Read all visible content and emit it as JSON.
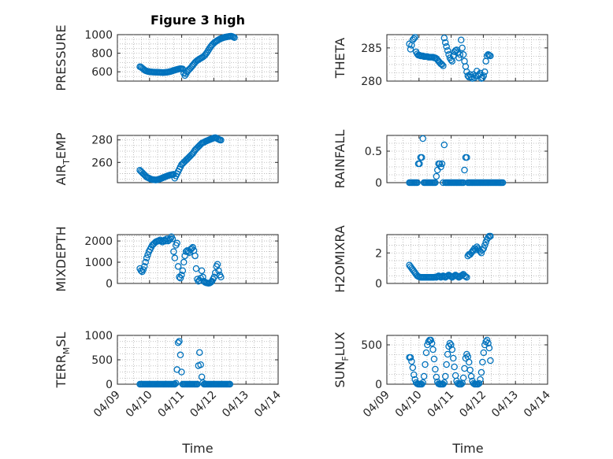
{
  "figure": {
    "title": "Figure 3 high",
    "xlabel": "Time",
    "x_tick_labels": [
      "04/09",
      "04/10",
      "04/11",
      "04/12",
      "04/13",
      "04/14"
    ]
  },
  "colors": {
    "marker": "#0072bd",
    "axis": "#262626",
    "grid": "#b0b0b0"
  },
  "chart_data": [
    {
      "type": "scatter",
      "id": "pressure",
      "ylabel": "PRESSURE",
      "ylabel_sub": "",
      "ylim": [
        500,
        1000
      ],
      "yticks": [
        600,
        800,
        1000
      ],
      "x_start": 0.7,
      "x_step": 0.035,
      "values": [
        655,
        650,
        640,
        630,
        620,
        612,
        608,
        604,
        602,
        600,
        598,
        597,
        596,
        596,
        595,
        595,
        594,
        594,
        593,
        593,
        592,
        592,
        593,
        594,
        595,
        597,
        600,
        603,
        606,
        610,
        614,
        618,
        622,
        625,
        628,
        631,
        633,
        632,
        630,
        585,
        560,
        580,
        600,
        615,
        628,
        640,
        655,
        670,
        685,
        700,
        712,
        722,
        730,
        738,
        745,
        752,
        760,
        770,
        782,
        798,
        815,
        835,
        855,
        872,
        888,
        900,
        912,
        922,
        930,
        938,
        945,
        952,
        958,
        962,
        966,
        970,
        973,
        976,
        978,
        980,
        982,
        983,
        980,
        975,
        968
      ]
    },
    {
      "type": "scatter",
      "id": "theta",
      "ylabel": "THETA",
      "ylabel_sub": "",
      "ylim": [
        280,
        287
      ],
      "yticks": [
        280,
        285
      ],
      "x_start": 0.7,
      "x_step": 0.035,
      "values": [
        285.6,
        284.8,
        285.4,
        286.2,
        286.4,
        286.6,
        284.4,
        284.1,
        283.9,
        283.9,
        283.8,
        283.8,
        283.8,
        283.7,
        283.7,
        283.7,
        283.7,
        283.6,
        283.6,
        283.6,
        283.6,
        283.6,
        283.5,
        283.5,
        283.4,
        283.2,
        283.0,
        282.8,
        282.6,
        282.5,
        282.3,
        286.5,
        285.8,
        285.2,
        284.6,
        284.0,
        283.5,
        283.2,
        283.0,
        283.8,
        284.4,
        284.6,
        284.7,
        284.3,
        283.5,
        284.0,
        286.2,
        285.0,
        284.0,
        283.0,
        282.2,
        281.4,
        280.8,
        280.6,
        281.0,
        280.6,
        280.4,
        281.0,
        280.5,
        280.8,
        281.5,
        280.8,
        281.0,
        281.2,
        280.4,
        280.5,
        280.8,
        281.4,
        283.0,
        283.8,
        284.0,
        283.9,
        283.8
      ]
    },
    {
      "type": "scatter",
      "id": "air_temp",
      "ylabel": "AIR",
      "ylabel_sub": "T",
      "ylabel_tail": "EMP",
      "ylim": [
        242,
        284
      ],
      "yticks": [
        260,
        280
      ],
      "x_start": 0.7,
      "x_step": 0.035,
      "values": [
        253,
        252,
        251,
        250,
        249,
        248,
        247,
        246.5,
        246,
        245.5,
        245,
        244.8,
        244.6,
        244.5,
        244.4,
        244.5,
        244.7,
        245,
        245.4,
        245.8,
        246.2,
        246.6,
        247,
        247.4,
        247.8,
        248.2,
        248.5,
        248.8,
        249,
        249.2,
        249.4,
        246,
        248,
        250,
        252,
        254,
        256,
        258,
        259,
        260,
        261,
        262,
        263,
        264,
        265,
        266,
        267,
        268,
        269.5,
        271,
        272,
        273,
        274,
        275,
        276,
        277,
        277.5,
        278,
        278.5,
        279,
        279.4,
        279.8,
        280.2,
        280.6,
        281,
        281.4,
        281.8,
        282,
        281.6,
        281,
        280.5,
        280,
        279.8
      ]
    },
    {
      "type": "scatter",
      "id": "rainfall",
      "ylabel": "RAINFALL",
      "ylabel_sub": "",
      "ylim": [
        0,
        0.75
      ],
      "yticks": [
        0,
        0.5
      ],
      "x_start": 0.7,
      "x_step": 0.035,
      "values": [
        0,
        0,
        0,
        0,
        0,
        0,
        0,
        0,
        0.3,
        0.3,
        0.4,
        0.4,
        0.7,
        0,
        0,
        0,
        0,
        0,
        0,
        0,
        0,
        0,
        0,
        0,
        0.1,
        0.2,
        0.3,
        0.3,
        0.25,
        0.3,
        0,
        0.6,
        0,
        0,
        0,
        0,
        0,
        0,
        0,
        0,
        0,
        0,
        0,
        0,
        0,
        0,
        0,
        0,
        0,
        0.2,
        0.4,
        0.4,
        0,
        0,
        0,
        0,
        0,
        0,
        0,
        0,
        0,
        0,
        0,
        0,
        0,
        0,
        0,
        0,
        0,
        0,
        0,
        0,
        0,
        0,
        0,
        0,
        0,
        0,
        0,
        0,
        0,
        0,
        0,
        0
      ]
    },
    {
      "type": "scatter",
      "id": "mixdepth",
      "ylabel": "MIXDEPTH",
      "ylabel_sub": "",
      "ylim": [
        0,
        2300
      ],
      "yticks": [
        0,
        1000,
        2000
      ],
      "x_start": 0.7,
      "x_step": 0.035,
      "values": [
        700,
        600,
        550,
        650,
        800,
        1000,
        1200,
        1350,
        1500,
        1600,
        1700,
        1800,
        1850,
        1900,
        1950,
        1980,
        2000,
        2000,
        2050,
        2000,
        1950,
        2000,
        2050,
        2000,
        2100,
        2000,
        2050,
        2100,
        2200,
        2100,
        1500,
        1200,
        1800,
        1900,
        800,
        300,
        250,
        400,
        600,
        1000,
        1300,
        1500,
        1550,
        1500,
        1450,
        1600,
        1650,
        1700,
        1550,
        1300,
        700,
        200,
        100,
        150,
        250,
        600,
        300,
        100,
        50,
        30,
        20,
        10,
        20,
        50,
        100,
        200,
        300,
        500,
        800,
        900,
        600,
        400,
        300
      ]
    },
    {
      "type": "scatter",
      "id": "h2omixra",
      "ylabel": "H2OMIXRA",
      "ylabel_sub": "",
      "ylim": [
        0,
        3.2
      ],
      "yticks": [
        0,
        2
      ],
      "x_start": 0.7,
      "x_step": 0.035,
      "values": [
        1.2,
        1.1,
        1.0,
        0.9,
        0.8,
        0.7,
        0.6,
        0.5,
        0.45,
        0.42,
        0.4,
        0.4,
        0.4,
        0.4,
        0.4,
        0.4,
        0.4,
        0.4,
        0.4,
        0.4,
        0.4,
        0.4,
        0.4,
        0.42,
        0.4,
        0.45,
        0.5,
        0.45,
        0.4,
        0.45,
        0.5,
        0.45,
        0.4,
        0.45,
        0.5,
        0.55,
        0.5,
        0.45,
        0.4,
        0.45,
        0.5,
        0.55,
        0.5,
        0.45,
        0.4,
        0.45,
        0.5,
        0.55,
        0.6,
        0.5,
        0.45,
        0.4,
        1.8,
        1.9,
        1.9,
        2.0,
        2.1,
        2.2,
        2.3,
        2.2,
        2.4,
        2.3,
        2.2,
        2.1,
        2.0,
        2.2,
        2.3,
        2.5,
        2.7,
        2.9,
        3.0,
        3.1,
        3.1
      ]
    },
    {
      "type": "scatter",
      "id": "terr_msl",
      "ylabel": "TERR",
      "ylabel_sub": "M",
      "ylabel_tail": "SL",
      "ylim": [
        0,
        1000
      ],
      "yticks": [
        0,
        500,
        1000
      ],
      "x_start": 0.7,
      "x_step": 0.035,
      "values": [
        0,
        0,
        0,
        0,
        0,
        0,
        0,
        0,
        0,
        0,
        0,
        0,
        0,
        0,
        0,
        0,
        0,
        0,
        0,
        0,
        0,
        0,
        0,
        0,
        0,
        0,
        0,
        0,
        0,
        0,
        0,
        0,
        20,
        300,
        850,
        880,
        600,
        250,
        0,
        0,
        0,
        0,
        0,
        0,
        0,
        0,
        0,
        0,
        0,
        0,
        0,
        0,
        380,
        650,
        400,
        150,
        30,
        0,
        0,
        0,
        0,
        0,
        0,
        0,
        0,
        0,
        0,
        0,
        0,
        0,
        0,
        0,
        0,
        0,
        0,
        0,
        0,
        0,
        0,
        0,
        0
      ]
    },
    {
      "type": "scatter",
      "id": "sun_flux",
      "ylabel": "SUN",
      "ylabel_sub": "F",
      "ylabel_tail": "LUX",
      "ylim": [
        0,
        620
      ],
      "yticks": [
        0,
        500
      ],
      "x_start": 0.7,
      "x_step": 0.035,
      "values": [
        340,
        340,
        290,
        210,
        120,
        60,
        20,
        5,
        0,
        0,
        0,
        0,
        20,
        100,
        250,
        400,
        500,
        540,
        560,
        560,
        520,
        440,
        320,
        190,
        90,
        30,
        5,
        0,
        0,
        0,
        0,
        20,
        100,
        250,
        380,
        480,
        520,
        500,
        440,
        330,
        220,
        110,
        40,
        10,
        0,
        0,
        0,
        15,
        80,
        200,
        330,
        380,
        350,
        280,
        180,
        100,
        40,
        10,
        0,
        0,
        0,
        0,
        10,
        60,
        150,
        280,
        400,
        500,
        540,
        560,
        520,
        460,
        300
      ]
    }
  ]
}
